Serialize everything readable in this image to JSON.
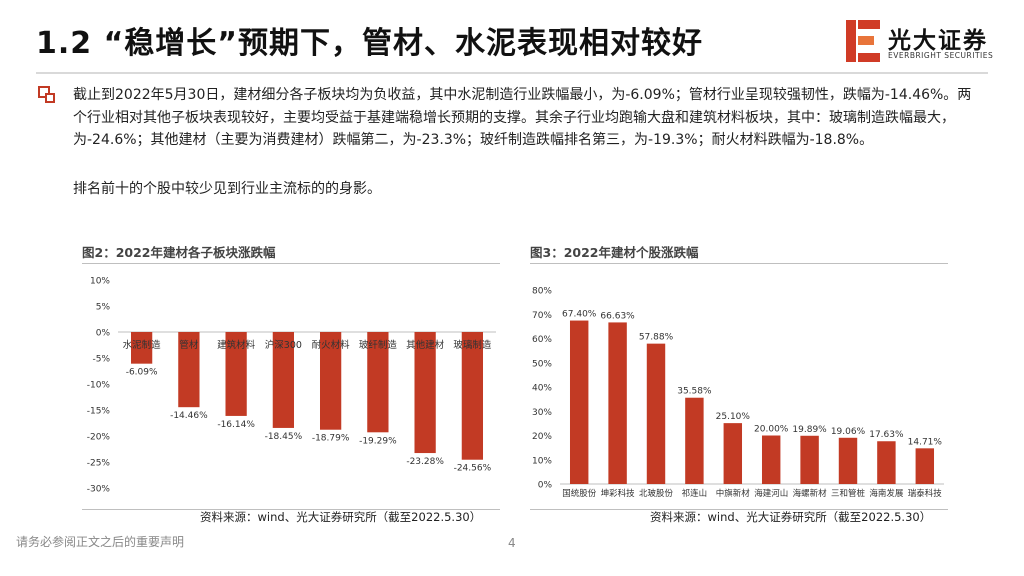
{
  "slide": {
    "title": "1.2 “稳增长”预期下，管材、水泥表现相对较好",
    "logo_cn": "光大证券",
    "logo_en": "EVERBRIGHT SECURITIES",
    "paragraph1": "截止到2022年5月30日，建材细分各子板块均为负收益，其中水泥制造行业跌幅最小，为-6.09%；管材行业呈现较强韧性，跌幅为-14.46%。两个行业相对其他子板块表现较好，主要均受益于基建端稳增长预期的支撑。其余子行业均跑输大盘和建筑材料板块，其中：玻璃制造跌幅最大，为-24.6%；其他建材（主要为消费建材）跌幅第二，为-23.3%；玻纤制造跌幅排名第三，为-19.3%；耐火材料跌幅为-18.8%。",
    "paragraph2": "排名前十的个股中较少见到行业主流标的的身影。",
    "footer_note": "请务必参阅正文之后的重要声明",
    "page_number": "4",
    "colors": {
      "bar": "#c23a24",
      "accent": "#d03b26"
    }
  },
  "chart_data": [
    {
      "type": "bar",
      "title": "图2：2022年建材各子板块涨跌幅",
      "categories": [
        "水泥制造",
        "管材",
        "建筑材料",
        "沪深300",
        "耐火材料",
        "玻纤制造",
        "其他建材",
        "玻璃制造"
      ],
      "values": [
        -6.09,
        -14.46,
        -16.14,
        -18.45,
        -18.79,
        -19.29,
        -23.28,
        -24.56
      ],
      "data_labels": [
        "-6.09%",
        "-14.46%",
        "-16.14%",
        "-18.45%",
        "-18.79%",
        "-19.29%",
        "-23.28%",
        "-24.56%"
      ],
      "ylim": [
        -30,
        10
      ],
      "yticks": [
        10,
        5,
        0,
        -5,
        -10,
        -15,
        -20,
        -25,
        -30
      ],
      "ytick_labels": [
        "10%",
        "5%",
        "0%",
        "-5%",
        "-10%",
        "-15%",
        "-20%",
        "-25%",
        "-30%"
      ],
      "source": "资料来源：wind、光大证券研究所（截至2022.5.30）"
    },
    {
      "type": "bar",
      "title": "图3：2022年建材个股涨跌幅",
      "categories": [
        "国统股份",
        "坤彩科技",
        "北玻股份",
        "祁连山",
        "中旗新材",
        "海建河山",
        "海螺新材",
        "三和管桩",
        "海南发展",
        "瑞泰科技"
      ],
      "values": [
        67.4,
        66.63,
        57.88,
        35.58,
        25.1,
        20.0,
        19.89,
        19.06,
        17.63,
        14.71
      ],
      "data_labels": [
        "67.40%",
        "66.63%",
        "57.88%",
        "35.58%",
        "25.10%",
        "20.00%",
        "19.89%",
        "19.06%",
        "17.63%",
        "14.71%"
      ],
      "ylim": [
        0,
        80
      ],
      "yticks": [
        80,
        70,
        60,
        50,
        40,
        30,
        20,
        10,
        0
      ],
      "ytick_labels": [
        "80%",
        "70%",
        "60%",
        "50%",
        "40%",
        "30%",
        "20%",
        "10%",
        "0%"
      ],
      "source": "资料来源：wind、光大证券研究所（截至2022.5.30）"
    }
  ]
}
